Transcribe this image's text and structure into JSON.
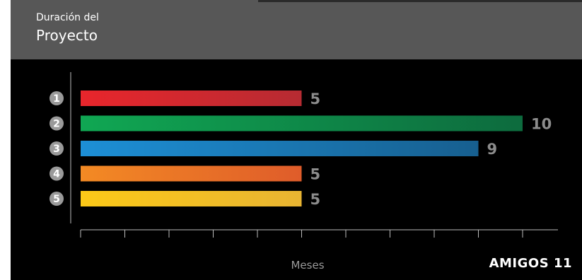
{
  "header": {
    "title_line1": "Duración del",
    "title_line2": "Proyecto"
  },
  "brand": "AMIGOS 11",
  "chart_data": {
    "type": "bar",
    "orientation": "horizontal",
    "title": "Duración del Proyecto",
    "xlabel": "Meses",
    "ylabel": "",
    "xlim": [
      0,
      10
    ],
    "grid": false,
    "categories": [
      "1",
      "2",
      "3",
      "4",
      "5"
    ],
    "values": [
      5,
      10,
      9,
      5,
      5
    ],
    "value_labels": [
      "5",
      "10",
      "9",
      "5",
      "5"
    ],
    "bar_colors": [
      [
        "#e8262c",
        "#b62b32"
      ],
      [
        "#10a753",
        "#0d6b3e"
      ],
      [
        "#1d8fd6",
        "#175f8f"
      ],
      [
        "#f38a24",
        "#df5c2a"
      ],
      [
        "#fcc918",
        "#e8b432"
      ]
    ],
    "badge_color": "#9a9a9a",
    "value_label_color": "#8c8c8c"
  }
}
